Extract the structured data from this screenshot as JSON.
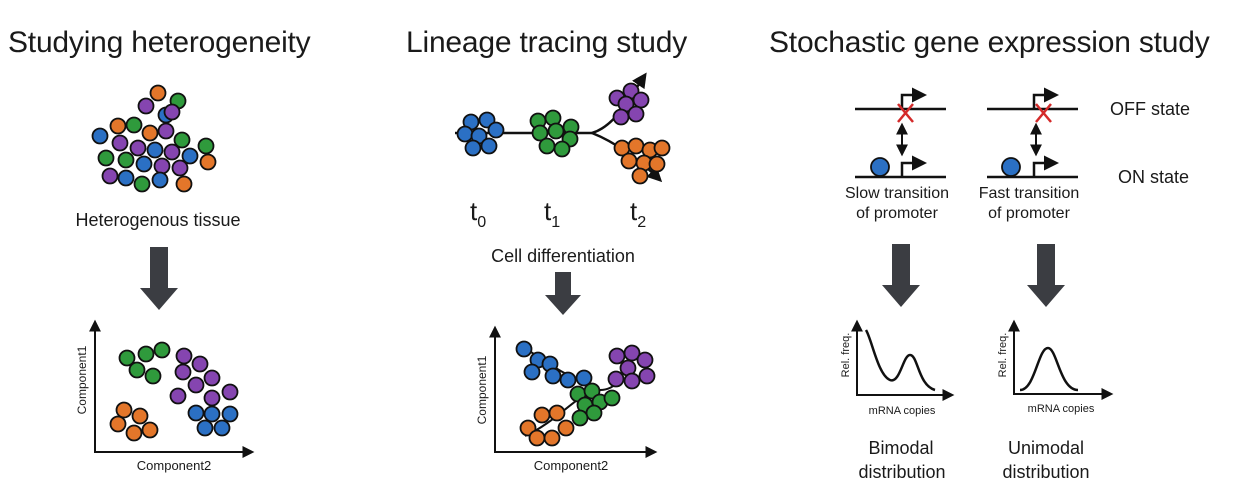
{
  "colors": {
    "blue": "#2b70c4",
    "green": "#2f9a3c",
    "purple": "#8545b0",
    "orange": "#e3762a",
    "arrow": "#3b3d42",
    "cross": "#d42a2a"
  },
  "panel1": {
    "title": "Studying heterogeneity",
    "caption": "Heterogenous tissue",
    "plot": {
      "ylabel": "Component1",
      "xlabel": "Component2"
    }
  },
  "panel2": {
    "title": "Lineage tracing study",
    "time_labels": [
      {
        "base": "t",
        "sub": "0"
      },
      {
        "base": "t",
        "sub": "1"
      },
      {
        "base": "t",
        "sub": "2"
      }
    ],
    "caption": "Cell differentiation",
    "plot": {
      "ylabel": "Component1",
      "xlabel": "Component2"
    }
  },
  "panel3": {
    "title": "Stochastic gene expression study",
    "state_off": "OFF state",
    "state_on": "ON state",
    "slow": {
      "line1": "Slow transition",
      "line2": "of promoter",
      "ylabel": "Rel. freq.",
      "xlabel": "mRNA copies",
      "result_line1": "Bimodal",
      "result_line2": "distribution"
    },
    "fast": {
      "line1": "Fast transition",
      "line2": "of promoter",
      "ylabel": "Rel. freq.",
      "xlabel": "mRNA copies",
      "result_line1": "Unimodal",
      "result_line2": "distribution"
    }
  }
}
